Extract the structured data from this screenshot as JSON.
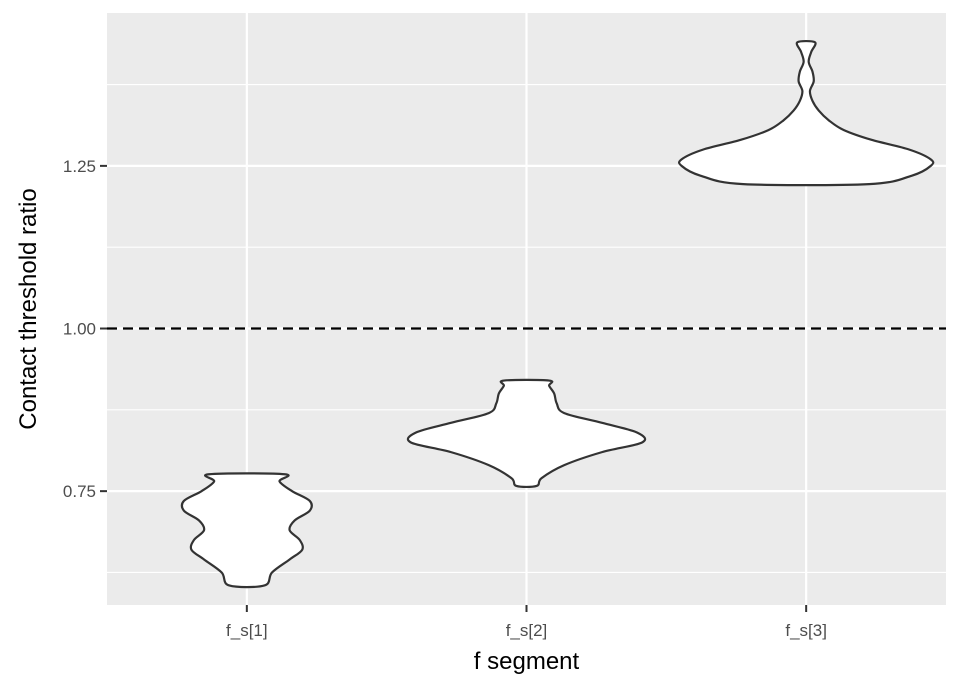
{
  "chart_data": {
    "type": "violin",
    "title": "",
    "xlabel": "f segment",
    "ylabel": "Contact threshold ratio",
    "categories": [
      "f_s[1]",
      "f_s[2]",
      "f_s[3]"
    ],
    "ylim": [
      0.575,
      1.485
    ],
    "yticks": [
      0.75,
      1.0,
      1.25
    ],
    "ytick_labels": [
      "0.75",
      "1.00",
      "1.25"
    ],
    "reference_line": {
      "y": 1.0,
      "style": "dashed",
      "color": "#000000"
    },
    "grid": true,
    "background": "#ebebeb",
    "violin_fill": "#ffffff",
    "violin_stroke": "#333333",
    "violins": [
      {
        "category": "f_s[1]",
        "min": 0.605,
        "max": 0.776,
        "profile": [
          [
            0.605,
            0.14
          ],
          [
            0.625,
            0.2
          ],
          [
            0.645,
            0.34
          ],
          [
            0.66,
            0.44
          ],
          [
            0.675,
            0.42
          ],
          [
            0.69,
            0.34
          ],
          [
            0.705,
            0.38
          ],
          [
            0.72,
            0.5
          ],
          [
            0.735,
            0.5
          ],
          [
            0.75,
            0.36
          ],
          [
            0.765,
            0.26
          ],
          [
            0.776,
            0.3
          ]
        ]
      },
      {
        "category": "f_s[2]",
        "min": 0.758,
        "max": 0.92,
        "profile": [
          [
            0.758,
            0.08
          ],
          [
            0.77,
            0.12
          ],
          [
            0.79,
            0.3
          ],
          [
            0.81,
            0.6
          ],
          [
            0.825,
            0.92
          ],
          [
            0.84,
            0.88
          ],
          [
            0.855,
            0.6
          ],
          [
            0.87,
            0.3
          ],
          [
            0.885,
            0.24
          ],
          [
            0.9,
            0.22
          ],
          [
            0.912,
            0.18
          ],
          [
            0.92,
            0.18
          ]
        ]
      },
      {
        "category": "f_s[3]",
        "min": 1.222,
        "max": 1.44,
        "profile": [
          [
            1.222,
            0.5
          ],
          [
            1.235,
            0.84
          ],
          [
            1.25,
            0.99
          ],
          [
            1.26,
            0.99
          ],
          [
            1.275,
            0.82
          ],
          [
            1.29,
            0.52
          ],
          [
            1.305,
            0.3
          ],
          [
            1.32,
            0.18
          ],
          [
            1.335,
            0.1
          ],
          [
            1.35,
            0.05
          ],
          [
            1.365,
            0.03
          ],
          [
            1.38,
            0.06
          ],
          [
            1.395,
            0.05
          ],
          [
            1.41,
            0.02
          ],
          [
            1.425,
            0.04
          ],
          [
            1.44,
            0.07
          ]
        ]
      }
    ]
  }
}
